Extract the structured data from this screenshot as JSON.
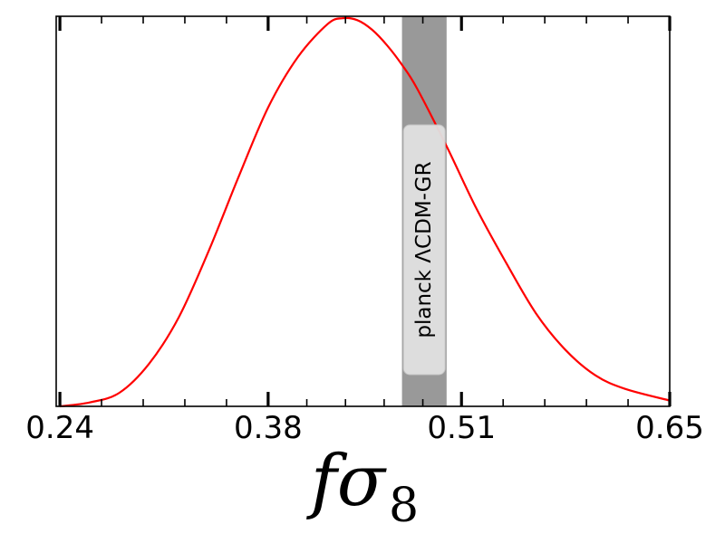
{
  "chart_data": {
    "type": "line",
    "xlabel": "fσ",
    "xlabel_subscript": "8",
    "ylabel": "",
    "xlim": [
      0.2375,
      0.65
    ],
    "ylim": [
      0,
      1
    ],
    "xticks": [
      0.24,
      0.38,
      0.51,
      0.65
    ],
    "xtick_labels": [
      "0.24",
      "0.38",
      "0.51",
      "0.65"
    ],
    "grid": false,
    "series": [
      {
        "color": "#ff0000",
        "x": [
          0.24,
          0.26,
          0.28,
          0.3,
          0.32,
          0.34,
          0.36,
          0.38,
          0.4,
          0.42,
          0.43,
          0.44,
          0.45,
          0.46,
          0.47,
          0.48,
          0.5,
          0.52,
          0.54,
          0.56,
          0.58,
          0.6,
          0.62,
          0.65
        ],
        "y": [
          0.0,
          0.01,
          0.035,
          0.11,
          0.23,
          0.4,
          0.59,
          0.77,
          0.9,
          0.985,
          1.0,
          0.995,
          0.97,
          0.93,
          0.88,
          0.82,
          0.67,
          0.51,
          0.37,
          0.24,
          0.145,
          0.08,
          0.045,
          0.015
        ]
      }
    ],
    "band": {
      "label": "planck ΛCDM-GR",
      "x_start": 0.47,
      "x_end": 0.5,
      "color": "#999999"
    }
  }
}
